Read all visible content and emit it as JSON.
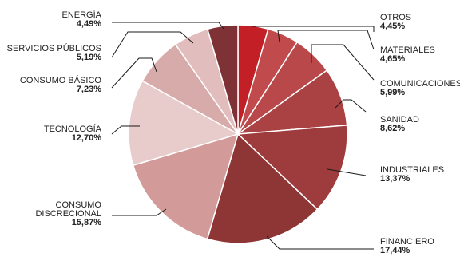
{
  "chart_data": {
    "type": "pie",
    "title": "",
    "slices": [
      {
        "label": [
          "OTROS"
        ],
        "value": 4.45,
        "value_text": "4,45%",
        "color": "#c31f26"
      },
      {
        "label": [
          "MATERIALES"
        ],
        "value": 4.65,
        "value_text": "4,65%",
        "color": "#c14a4c"
      },
      {
        "label": [
          "COMUNICACIONES"
        ],
        "value": 5.99,
        "value_text": "5,99%",
        "color": "#b9484a"
      },
      {
        "label": [
          "SANIDAD"
        ],
        "value": 8.62,
        "value_text": "8,62%",
        "color": "#aa4142"
      },
      {
        "label": [
          "INDUSTRIALES"
        ],
        "value": 13.37,
        "value_text": "13,37%",
        "color": "#9e3c3d"
      },
      {
        "label": [
          "FINANCIERO"
        ],
        "value": 17.44,
        "value_text": "17,44%",
        "color": "#8e3535"
      },
      {
        "label": [
          "CONSUMO",
          "DISCRECIONAL"
        ],
        "value": 15.87,
        "value_text": "15,87%",
        "color": "#d29a99"
      },
      {
        "label": [
          "TECNOLOGÍA"
        ],
        "value": 12.7,
        "value_text": "12,70%",
        "color": "#e8cbcb"
      },
      {
        "label": [
          "CONSUMO BÁSICO"
        ],
        "value": 7.23,
        "value_text": "7,23%",
        "color": "#d8abab"
      },
      {
        "label": [
          "SERVICIOS PÚBLICOS"
        ],
        "value": 5.19,
        "value_text": "5,19%",
        "color": "#e2bdbd"
      },
      {
        "label": [
          "ENERGÍA"
        ],
        "value": 4.49,
        "value_text": "4,49%",
        "color": "#7e3235"
      }
    ]
  }
}
